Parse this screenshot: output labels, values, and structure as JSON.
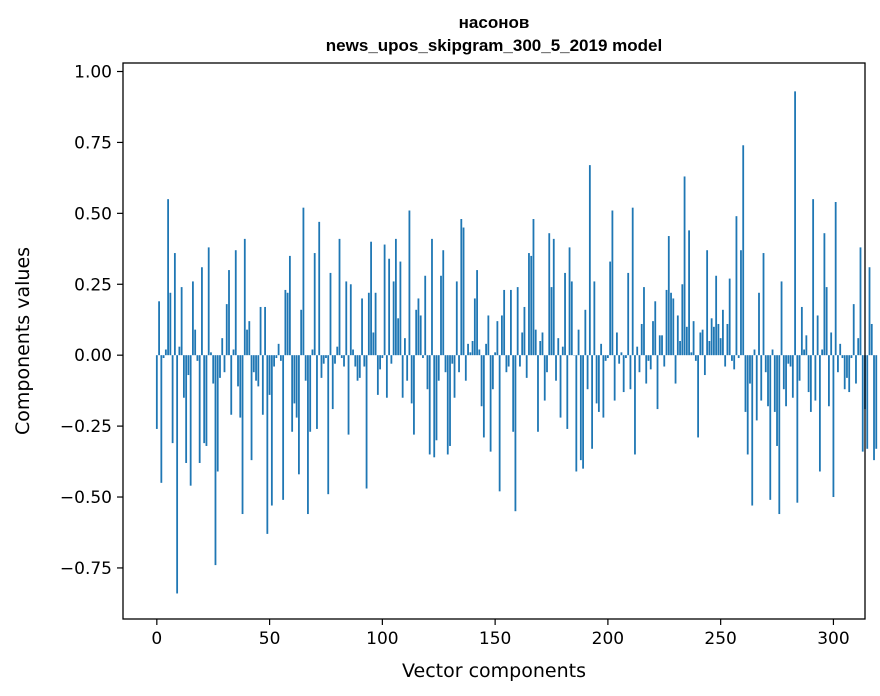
{
  "chart_data": {
    "type": "bar",
    "title_line1": "насонов",
    "title_line2": "news_upos_skipgram_300_5_2019 model",
    "xlabel": "Vector components",
    "ylabel": "Components values",
    "xlim": [
      -15,
      314
    ],
    "ylim": [
      -0.93,
      1.03
    ],
    "xticks": [
      0,
      50,
      100,
      150,
      200,
      250,
      300
    ],
    "xtick_labels": [
      "0",
      "50",
      "100",
      "150",
      "200",
      "250",
      "300"
    ],
    "yticks": [
      -0.75,
      -0.5,
      -0.25,
      0.0,
      0.25,
      0.5,
      0.75,
      1.0
    ],
    "ytick_labels": [
      "−0.75",
      "−0.50",
      "−0.25",
      "0.00",
      "0.25",
      "0.50",
      "0.75",
      "1.00"
    ],
    "bar_color": "#1f77b4",
    "values": [
      -0.26,
      0.19,
      -0.45,
      -0.01,
      0.02,
      0.55,
      0.22,
      -0.31,
      0.36,
      -0.84,
      0.03,
      0.24,
      -0.15,
      -0.38,
      -0.07,
      -0.46,
      0.26,
      0.09,
      -0.02,
      -0.38,
      0.31,
      -0.31,
      -0.32,
      0.38,
      0.01,
      -0.1,
      -0.74,
      -0.41,
      -0.08,
      0.06,
      -0.06,
      0.18,
      0.3,
      -0.21,
      0.02,
      0.37,
      -0.11,
      -0.22,
      -0.56,
      0.41,
      0.09,
      0.12,
      -0.37,
      -0.06,
      -0.09,
      -0.11,
      0.17,
      -0.21,
      0.17,
      -0.63,
      -0.14,
      -0.53,
      -0.04,
      -0.01,
      0.04,
      -0.02,
      -0.51,
      0.23,
      0.22,
      0.35,
      -0.27,
      -0.17,
      -0.22,
      -0.42,
      0.16,
      0.52,
      -0.09,
      -0.56,
      -0.27,
      0.02,
      0.36,
      -0.26,
      0.47,
      -0.08,
      -0.03,
      -0.01,
      -0.49,
      0.29,
      -0.19,
      -0.03,
      0.03,
      0.41,
      -0.01,
      -0.04,
      0.26,
      -0.28,
      0.25,
      0.02,
      -0.04,
      -0.09,
      -0.08,
      0.2,
      -0.04,
      -0.47,
      0.22,
      0.4,
      0.08,
      0.22,
      -0.14,
      -0.05,
      -0.01,
      0.39,
      -0.15,
      0.34,
      -0.03,
      0.26,
      0.41,
      0.13,
      0.33,
      -0.15,
      0.06,
      -0.09,
      0.51,
      -0.17,
      -0.28,
      0.16,
      0.2,
      0.14,
      -0.01,
      0.28,
      -0.12,
      -0.35,
      0.41,
      -0.36,
      -0.3,
      -0.09,
      0.28,
      0.37,
      -0.06,
      -0.35,
      -0.32,
      -0.03,
      -0.15,
      0.26,
      -0.06,
      0.48,
      0.45,
      -0.09,
      0.04,
      0.01,
      0.05,
      0.2,
      0.3,
      0.02,
      -0.18,
      -0.29,
      0.04,
      0.14,
      -0.34,
      -0.12,
      0.01,
      0.12,
      -0.48,
      0.14,
      0.23,
      -0.06,
      -0.04,
      0.23,
      -0.27,
      -0.55,
      0.24,
      -0.04,
      0.08,
      0.17,
      -0.08,
      0.36,
      0.35,
      0.48,
      0.09,
      -0.27,
      0.05,
      0.08,
      -0.16,
      -0.06,
      0.43,
      0.24,
      0.41,
      -0.09,
      0.06,
      -0.22,
      0.03,
      0.29,
      -0.26,
      0.38,
      0.26,
      0.0,
      -0.41,
      0.09,
      -0.37,
      -0.4,
      0.16,
      -0.12,
      0.67,
      -0.33,
      0.26,
      -0.17,
      -0.2,
      0.04,
      -0.22,
      -0.02,
      -0.01,
      0.33,
      0.51,
      -0.16,
      0.08,
      -0.03,
      0.01,
      -0.13,
      -0.01,
      0.29,
      -0.12,
      0.52,
      -0.35,
      0.03,
      -0.06,
      0.11,
      0.24,
      -0.1,
      -0.02,
      -0.05,
      0.12,
      0.19,
      -0.19,
      0.07,
      0.07,
      -0.04,
      0.23,
      0.42,
      0.22,
      0.2,
      -0.1,
      0.14,
      0.05,
      0.25,
      0.63,
      0.1,
      0.44,
      0.01,
      0.12,
      -0.02,
      -0.29,
      0.08,
      0.09,
      -0.07,
      0.37,
      0.05,
      0.13,
      0.1,
      0.28,
      0.11,
      0.06,
      0.16,
      -0.04,
      0.11,
      0.27,
      -0.02,
      -0.05,
      0.49,
      -0.01,
      0.37,
      0.74,
      -0.2,
      -0.35,
      -0.1,
      -0.53,
      0.02,
      -0.23,
      0.22,
      -0.16,
      0.36,
      -0.06,
      -0.18,
      -0.51,
      0.02,
      -0.2,
      -0.32,
      -0.56,
      0.26,
      -0.12,
      -0.18,
      -0.03,
      -0.04,
      -0.15,
      0.93,
      -0.52,
      -0.09,
      0.17,
      0.02,
      0.07,
      -0.13,
      -0.2,
      0.55,
      -0.16,
      0.14,
      -0.41,
      0.02,
      0.43,
      0.24,
      -0.18,
      0.08,
      -0.5,
      0.54,
      -0.06,
      0.04,
      -0.01,
      -0.12,
      -0.08,
      -0.13,
      -0.01,
      0.18,
      -0.1,
      0.06,
      0.38,
      -0.34,
      -0.19,
      -0.33,
      0.31,
      0.11,
      -0.37,
      -0.33
    ]
  }
}
